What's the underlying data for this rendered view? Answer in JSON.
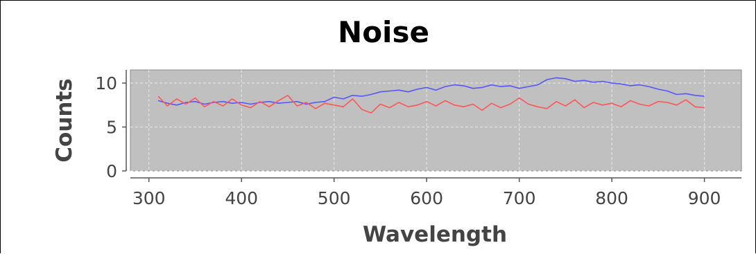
{
  "chart_data": {
    "type": "line",
    "title": "Noise",
    "xlabel": "Wavelength",
    "ylabel": "Counts",
    "xlim": [
      280,
      940
    ],
    "ylim": [
      0,
      11.5
    ],
    "x_ticks": [
      300,
      400,
      500,
      600,
      700,
      800,
      900
    ],
    "y_ticks": [
      0,
      5,
      10
    ],
    "grid": true,
    "legend": "none",
    "colors": {
      "plot_background": "#c0c0c0",
      "grid": "#e8e8e8",
      "series_1": "#5555ff",
      "series_2": "#ff5555"
    },
    "series": [
      {
        "color": "#5555ff",
        "x": [
          310,
          320,
          330,
          340,
          350,
          360,
          370,
          380,
          390,
          400,
          410,
          420,
          430,
          440,
          450,
          460,
          470,
          480,
          490,
          500,
          510,
          520,
          530,
          540,
          550,
          560,
          570,
          580,
          590,
          600,
          610,
          620,
          630,
          640,
          650,
          660,
          670,
          680,
          690,
          700,
          710,
          720,
          730,
          740,
          750,
          760,
          770,
          780,
          790,
          800,
          810,
          820,
          830,
          840,
          850,
          860,
          870,
          880,
          890,
          900
        ],
        "values": [
          8.0,
          7.7,
          7.5,
          7.8,
          7.9,
          7.6,
          7.8,
          7.9,
          7.7,
          7.8,
          7.6,
          7.8,
          7.9,
          7.7,
          7.8,
          7.9,
          7.6,
          7.8,
          7.9,
          8.4,
          8.2,
          8.6,
          8.5,
          8.7,
          9.0,
          9.1,
          9.2,
          9.0,
          9.3,
          9.5,
          9.2,
          9.6,
          9.8,
          9.7,
          9.4,
          9.5,
          9.8,
          9.6,
          9.7,
          9.4,
          9.6,
          9.8,
          10.4,
          10.6,
          10.5,
          10.2,
          10.3,
          10.1,
          10.2,
          10.0,
          9.9,
          9.7,
          9.8,
          9.6,
          9.3,
          9.1,
          8.7,
          8.8,
          8.6,
          8.5
        ]
      },
      {
        "color": "#ff5555",
        "x": [
          310,
          320,
          330,
          340,
          350,
          360,
          370,
          380,
          390,
          400,
          410,
          420,
          430,
          440,
          450,
          460,
          470,
          480,
          490,
          500,
          510,
          520,
          530,
          540,
          550,
          560,
          570,
          580,
          590,
          600,
          610,
          620,
          630,
          640,
          650,
          660,
          670,
          680,
          690,
          700,
          710,
          720,
          730,
          740,
          750,
          760,
          770,
          780,
          790,
          800,
          810,
          820,
          830,
          840,
          850,
          860,
          870,
          880,
          890,
          900
        ],
        "values": [
          8.5,
          7.4,
          8.2,
          7.6,
          8.3,
          7.3,
          7.9,
          7.4,
          8.2,
          7.5,
          7.2,
          7.9,
          7.3,
          8.0,
          8.6,
          7.4,
          7.8,
          7.1,
          7.7,
          7.5,
          7.3,
          8.2,
          7.0,
          6.6,
          7.6,
          7.2,
          7.8,
          7.3,
          7.5,
          7.9,
          7.4,
          8.0,
          7.5,
          7.3,
          7.6,
          6.9,
          7.7,
          7.2,
          7.6,
          8.3,
          7.6,
          7.3,
          7.1,
          7.9,
          7.4,
          8.1,
          7.2,
          7.8,
          7.5,
          7.7,
          7.3,
          8.0,
          7.6,
          7.4,
          7.9,
          7.8,
          7.5,
          8.1,
          7.3,
          7.2
        ]
      }
    ]
  }
}
